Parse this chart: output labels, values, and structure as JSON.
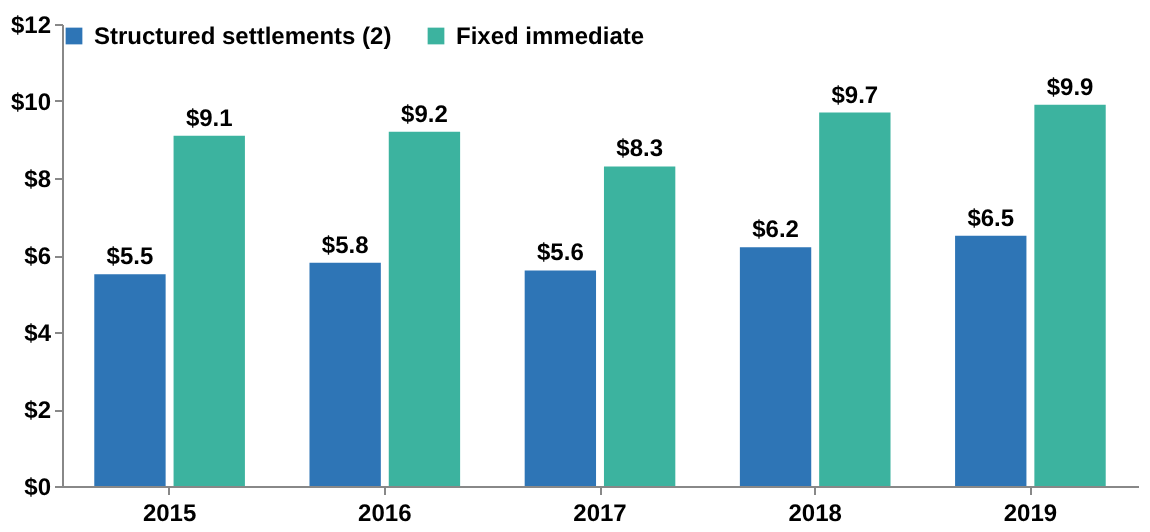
{
  "chart_data": {
    "type": "bar",
    "categories": [
      "2015",
      "2016",
      "2017",
      "2018",
      "2019"
    ],
    "series": [
      {
        "name": "Structured settlements (2)",
        "color": "#2e75b6",
        "values": [
          5.5,
          5.8,
          5.6,
          6.2,
          6.5
        ],
        "value_labels": [
          "$5.5",
          "$5.8",
          "$5.6",
          "$6.2",
          "$6.5"
        ]
      },
      {
        "name": "Fixed immediate",
        "color": "#3cb39f",
        "values": [
          9.1,
          9.2,
          8.3,
          9.7,
          9.9
        ],
        "value_labels": [
          "$9.1",
          "$9.2",
          "$8.3",
          "$9.7",
          "$9.9"
        ]
      }
    ],
    "ylim": [
      0,
      12
    ],
    "yticks": [
      {
        "value": 0,
        "label": "$0"
      },
      {
        "value": 2,
        "label": "$2"
      },
      {
        "value": 4,
        "label": "$4"
      },
      {
        "value": 6,
        "label": "$6"
      },
      {
        "value": 8,
        "label": "$8"
      },
      {
        "value": 10,
        "label": "$10"
      },
      {
        "value": 12,
        "label": "$12"
      }
    ],
    "grid": false,
    "legend": "top left"
  }
}
